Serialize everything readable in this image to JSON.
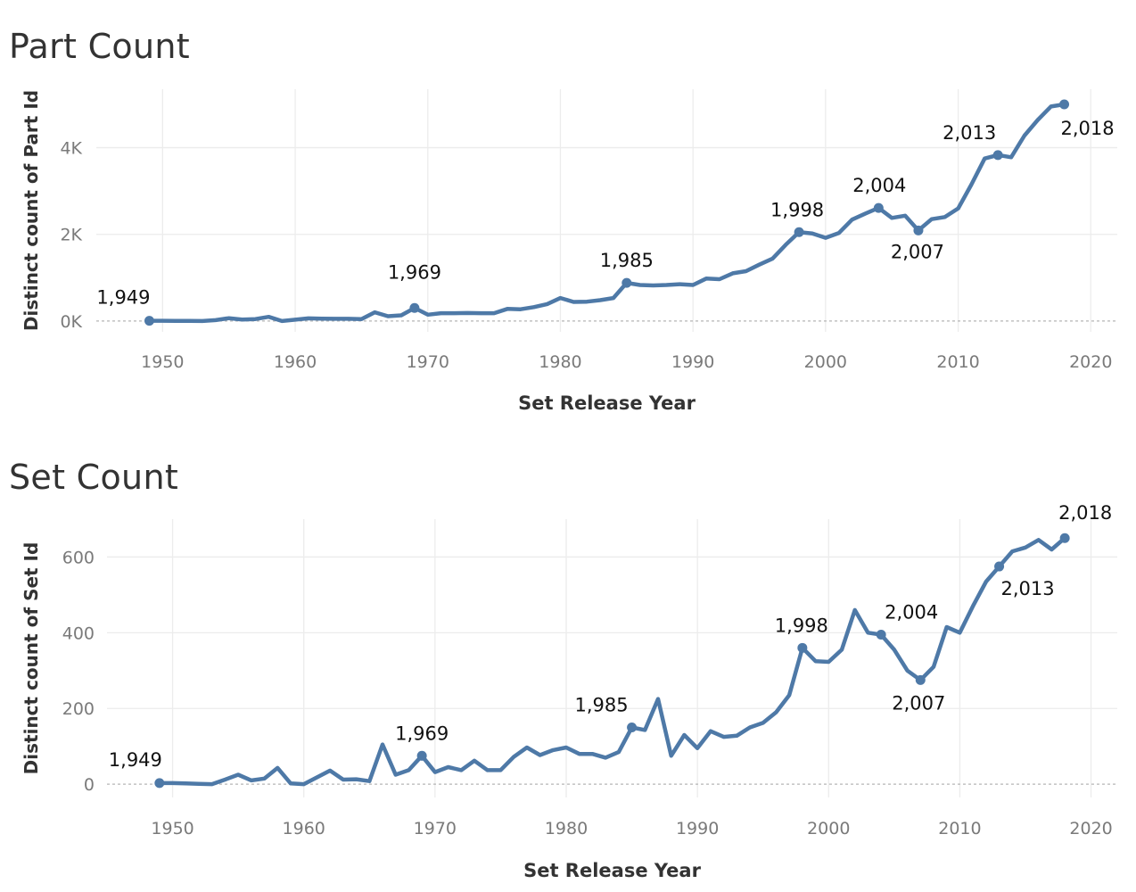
{
  "chart_data": [
    {
      "type": "line",
      "title": "Part Count",
      "xlabel": "Set Release Year",
      "ylabel": "Distinct count of Part Id",
      "xlim": [
        1945,
        2022
      ],
      "ylim": [
        -250,
        5350
      ],
      "x_ticks": [
        1950,
        1960,
        1970,
        1980,
        1990,
        2000,
        2010,
        2020
      ],
      "x_tick_labels": [
        "1950",
        "1960",
        "1970",
        "1980",
        "1990",
        "2000",
        "2010",
        "2020"
      ],
      "y_ticks": [
        0,
        2000,
        4000
      ],
      "y_tick_labels": [
        "0K",
        "2K",
        "4K"
      ],
      "grid": true,
      "color": "#4e79a7",
      "series": [
        {
          "x": [
            1949,
            1950,
            1951,
            1952,
            1953,
            1954,
            1955,
            1956,
            1957,
            1958,
            1959,
            1960,
            1961,
            1962,
            1963,
            1964,
            1965,
            1966,
            1967,
            1968,
            1969,
            1970,
            1971,
            1972,
            1973,
            1974,
            1975,
            1976,
            1977,
            1978,
            1979,
            1980,
            1981,
            1982,
            1983,
            1984,
            1985,
            1986,
            1987,
            1988,
            1989,
            1990,
            1991,
            1992,
            1993,
            1994,
            1995,
            1996,
            1997,
            1998,
            1999,
            2000,
            2001,
            2002,
            2003,
            2004,
            2005,
            2006,
            2007,
            2008,
            2009,
            2010,
            2011,
            2012,
            2013,
            2014,
            2015,
            2016,
            2017,
            2018
          ],
          "y": [
            5,
            5,
            3,
            2,
            0,
            20,
            65,
            35,
            45,
            95,
            0,
            30,
            60,
            55,
            50,
            50,
            45,
            200,
            110,
            130,
            300,
            145,
            180,
            180,
            185,
            180,
            180,
            280,
            270,
            320,
            390,
            530,
            440,
            445,
            480,
            530,
            880,
            830,
            820,
            830,
            850,
            830,
            980,
            965,
            1100,
            1150,
            1300,
            1440,
            1760,
            2050,
            2020,
            1920,
            2030,
            2340,
            2480,
            2610,
            2380,
            2430,
            2090,
            2350,
            2400,
            2600,
            3150,
            3750,
            3830,
            3780,
            4280,
            4640,
            4950,
            5000
          ]
        }
      ],
      "annotations": [
        {
          "x": 1949,
          "y": 5,
          "text": "1,949"
        },
        {
          "x": 1969,
          "y": 300,
          "text": "1,969"
        },
        {
          "x": 1985,
          "y": 880,
          "text": "1,985"
        },
        {
          "x": 1998,
          "y": 2050,
          "text": "1,998"
        },
        {
          "x": 2004,
          "y": 2610,
          "text": "2,004"
        },
        {
          "x": 2007,
          "y": 2090,
          "text": "2,007"
        },
        {
          "x": 2013,
          "y": 3830,
          "text": "2,013"
        },
        {
          "x": 2018,
          "y": 5000,
          "text": "2,018"
        }
      ]
    },
    {
      "type": "line",
      "title": "Set Count",
      "xlabel": "Set Release Year",
      "ylabel": "Distinct count of Set Id",
      "xlim": [
        1945,
        2022
      ],
      "ylim": [
        -35,
        700
      ],
      "x_ticks": [
        1950,
        1960,
        1970,
        1980,
        1990,
        2000,
        2010,
        2020
      ],
      "x_tick_labels": [
        "1950",
        "1960",
        "1970",
        "1980",
        "1990",
        "2000",
        "2010",
        "2020"
      ],
      "y_ticks": [
        0,
        200,
        400,
        600
      ],
      "y_tick_labels": [
        "0",
        "200",
        "400",
        "600"
      ],
      "grid": true,
      "color": "#4e79a7",
      "series": [
        {
          "x": [
            1949,
            1950,
            1951,
            1952,
            1953,
            1954,
            1955,
            1956,
            1957,
            1958,
            1959,
            1960,
            1961,
            1962,
            1963,
            1964,
            1965,
            1966,
            1967,
            1968,
            1969,
            1970,
            1971,
            1972,
            1973,
            1974,
            1975,
            1976,
            1977,
            1978,
            1979,
            1980,
            1981,
            1982,
            1983,
            1984,
            1985,
            1986,
            1987,
            1988,
            1989,
            1990,
            1991,
            1992,
            1993,
            1994,
            1995,
            1996,
            1997,
            1998,
            1999,
            2000,
            2001,
            2002,
            2003,
            2004,
            2005,
            2006,
            2007,
            2008,
            2009,
            2010,
            2011,
            2012,
            2013,
            2014,
            2015,
            2016,
            2017,
            2018
          ],
          "y": [
            3,
            3,
            2,
            1,
            0,
            12,
            25,
            10,
            15,
            43,
            2,
            0,
            18,
            36,
            12,
            13,
            8,
            105,
            25,
            37,
            75,
            32,
            45,
            37,
            62,
            37,
            37,
            72,
            97,
            77,
            90,
            97,
            80,
            80,
            70,
            85,
            150,
            143,
            225,
            75,
            130,
            95,
            140,
            125,
            128,
            150,
            162,
            190,
            235,
            360,
            325,
            323,
            355,
            460,
            400,
            395,
            355,
            300,
            275,
            310,
            415,
            400,
            470,
            535,
            575,
            615,
            625,
            645,
            620,
            650
          ]
        }
      ],
      "annotations": [
        {
          "x": 1949,
          "y": 3,
          "text": "1,949"
        },
        {
          "x": 1969,
          "y": 75,
          "text": "1,969"
        },
        {
          "x": 1985,
          "y": 150,
          "text": "1,985"
        },
        {
          "x": 1998,
          "y": 360,
          "text": "1,998"
        },
        {
          "x": 2004,
          "y": 395,
          "text": "2,004"
        },
        {
          "x": 2007,
          "y": 275,
          "text": "2,007"
        },
        {
          "x": 2013,
          "y": 575,
          "text": "2,013"
        },
        {
          "x": 2018,
          "y": 650,
          "text": "2,018"
        }
      ]
    }
  ]
}
